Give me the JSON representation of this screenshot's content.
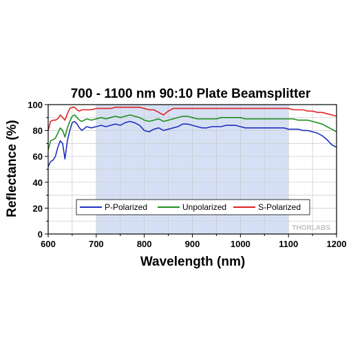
{
  "chart_data": {
    "type": "line",
    "title": "700 - 1100 nm 90:10 Plate Beamsplitter",
    "xlabel": "Wavelength (nm)",
    "ylabel": "Reflectance (%)",
    "xlim": [
      600,
      1200
    ],
    "ylim": [
      0,
      100
    ],
    "xticks": [
      600,
      700,
      800,
      900,
      1000,
      1100,
      1200
    ],
    "yticks": [
      0,
      20,
      40,
      60,
      80,
      100
    ],
    "grid": true,
    "legend_position": "lower-center",
    "highlight_range": [
      700,
      1100
    ],
    "watermark": "THORLABS",
    "series": [
      {
        "name": "P-Polarized",
        "color": "#1f2fbf",
        "x": [
          600,
          605,
          610,
          615,
          620,
          625,
          630,
          635,
          640,
          645,
          650,
          655,
          660,
          665,
          670,
          680,
          690,
          700,
          710,
          720,
          730,
          740,
          750,
          760,
          770,
          780,
          790,
          800,
          810,
          820,
          830,
          840,
          850,
          860,
          870,
          880,
          890,
          900,
          910,
          920,
          930,
          940,
          950,
          960,
          970,
          980,
          990,
          1000,
          1010,
          1020,
          1030,
          1040,
          1050,
          1060,
          1070,
          1080,
          1090,
          1100,
          1110,
          1120,
          1130,
          1140,
          1150,
          1160,
          1170,
          1180,
          1190,
          1200
        ],
        "y": [
          52,
          56,
          57,
          60,
          67,
          72,
          70,
          58,
          72,
          80,
          86,
          87,
          85,
          82,
          80,
          83,
          82,
          83,
          84,
          83,
          84,
          85,
          84,
          86,
          87,
          86,
          84,
          80,
          79,
          81,
          82,
          80,
          81,
          82,
          83,
          85,
          85,
          84,
          83,
          82,
          82,
          83,
          83,
          83,
          84,
          84,
          84,
          83,
          82,
          82,
          82,
          82,
          82,
          82,
          82,
          82,
          82,
          81,
          81,
          81,
          80,
          80,
          79,
          78,
          76,
          73,
          69,
          67
        ]
      },
      {
        "name": "Unpolarized",
        "color": "#1f8f1f",
        "x": [
          600,
          605,
          610,
          615,
          620,
          625,
          630,
          635,
          640,
          645,
          650,
          655,
          660,
          665,
          670,
          680,
          690,
          700,
          710,
          720,
          730,
          740,
          750,
          760,
          770,
          780,
          790,
          800,
          810,
          820,
          830,
          840,
          850,
          860,
          870,
          880,
          890,
          900,
          910,
          920,
          930,
          940,
          950,
          960,
          970,
          980,
          990,
          1000,
          1010,
          1020,
          1030,
          1040,
          1050,
          1060,
          1070,
          1080,
          1090,
          1100,
          1110,
          1120,
          1130,
          1140,
          1150,
          1160,
          1170,
          1180,
          1190,
          1200
        ],
        "y": [
          65,
          72,
          73,
          74,
          78,
          82,
          80,
          75,
          82,
          87,
          91,
          92,
          90,
          88,
          87,
          89,
          88,
          89,
          90,
          89,
          90,
          91,
          90,
          91,
          92,
          91,
          90,
          88,
          87,
          88,
          89,
          87,
          88,
          89,
          90,
          91,
          91,
          90,
          89,
          89,
          89,
          89,
          89,
          90,
          90,
          90,
          90,
          90,
          89,
          89,
          89,
          89,
          89,
          89,
          89,
          89,
          89,
          89,
          89,
          88,
          88,
          88,
          87,
          86,
          85,
          83,
          81,
          79
        ]
      },
      {
        "name": "S-Polarized",
        "color": "#e02020",
        "x": [
          600,
          605,
          610,
          615,
          620,
          625,
          630,
          635,
          640,
          645,
          650,
          655,
          660,
          665,
          670,
          680,
          690,
          700,
          710,
          720,
          730,
          740,
          750,
          760,
          770,
          780,
          790,
          800,
          810,
          820,
          830,
          840,
          850,
          860,
          870,
          880,
          890,
          900,
          910,
          920,
          930,
          940,
          950,
          960,
          970,
          980,
          990,
          1000,
          1010,
          1020,
          1030,
          1040,
          1050,
          1060,
          1070,
          1080,
          1090,
          1100,
          1110,
          1120,
          1130,
          1140,
          1150,
          1160,
          1170,
          1180,
          1190,
          1200
        ],
        "y": [
          80,
          87,
          88,
          88,
          89,
          92,
          90,
          88,
          93,
          97,
          98,
          98,
          96,
          95,
          96,
          96,
          96,
          97,
          97,
          97,
          97,
          98,
          98,
          98,
          98,
          98,
          98,
          97,
          96,
          96,
          94,
          92,
          95,
          97,
          97,
          97,
          97,
          97,
          97,
          97,
          97,
          97,
          97,
          97,
          97,
          97,
          97,
          97,
          97,
          97,
          97,
          97,
          97,
          97,
          97,
          97,
          97,
          97,
          96,
          96,
          96,
          95,
          95,
          94,
          94,
          93,
          92,
          91
        ]
      }
    ]
  }
}
